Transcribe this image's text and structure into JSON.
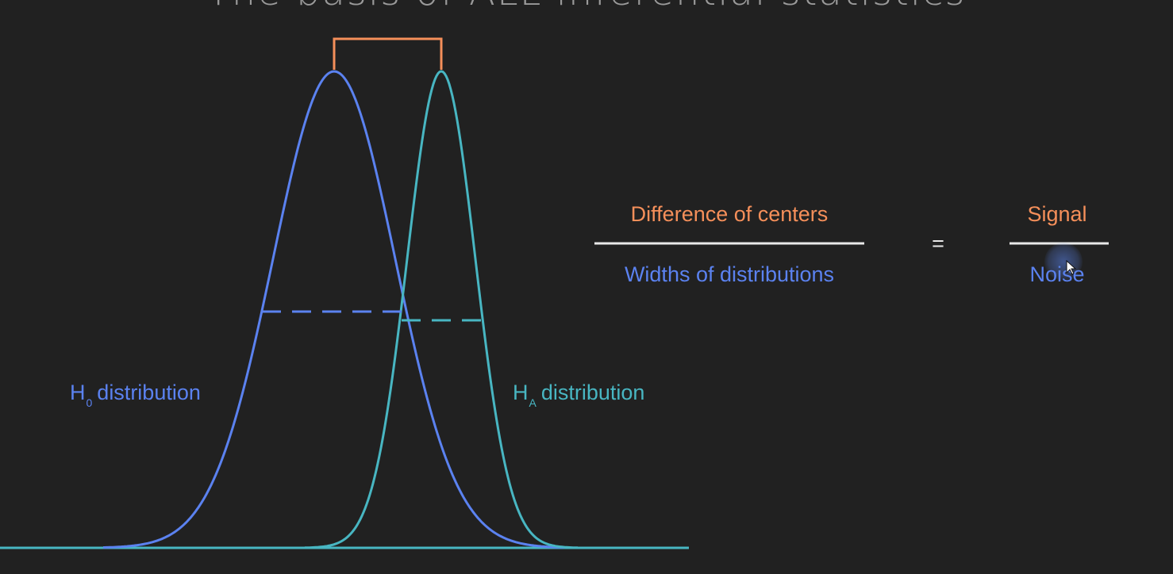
{
  "title": "The basis of ALL inferential statistics",
  "labels": {
    "h0": {
      "symbol": "H",
      "subscript": "0",
      "text": "distribution"
    },
    "ha": {
      "symbol": "H",
      "subscript": "A",
      "text": "distribution"
    }
  },
  "formula": {
    "left_numerator": "Difference of centers",
    "left_denominator": "Widths of distributions",
    "equals": "=",
    "right_numerator": "Signal",
    "right_denominator": "Noise"
  },
  "colors": {
    "h0": "#5b82f0",
    "ha": "#48b6c2",
    "signal": "#f58f5a",
    "line": "#e9e9e9",
    "background": "#212121"
  },
  "icons": [
    "mouse-pointer-icon"
  ]
}
